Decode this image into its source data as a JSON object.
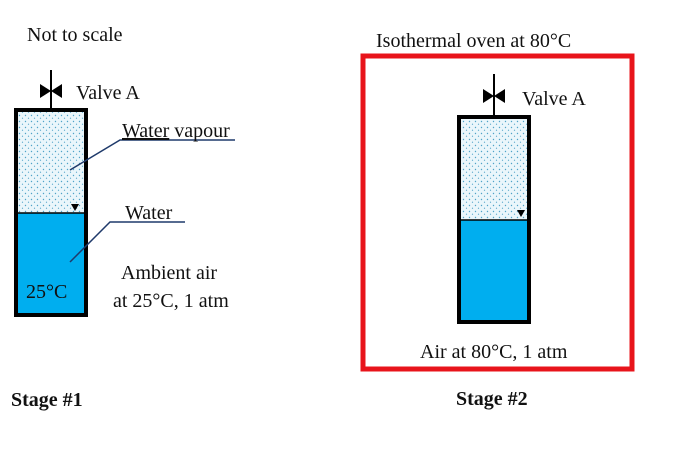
{
  "stage1": {
    "note": "Not to scale",
    "valve_label": "Valve A",
    "vapour_label_underlined": "Water",
    "vapour_label_rest": " vapour",
    "water_label": "Water",
    "temp_label": "25°C",
    "ambient_line1": "Ambient air",
    "ambient_line2": "at 25°C, 1 atm",
    "caption": "Stage #1"
  },
  "stage2": {
    "oven_title": "Isothermal oven at 80°C",
    "valve_label": "Valve A",
    "air_label": "Air at 80°C, 1 atm",
    "caption": "Stage #2"
  },
  "colors": {
    "water": "#00AEEF",
    "vapour_bg": "#EAF6FB",
    "vapour_dots": "#4FA3C8",
    "oven_border": "#E8141B",
    "leader": "#1F3A6B",
    "outline": "#000000"
  },
  "icons": [
    "valve-icon",
    "water-level-marker-icon"
  ]
}
